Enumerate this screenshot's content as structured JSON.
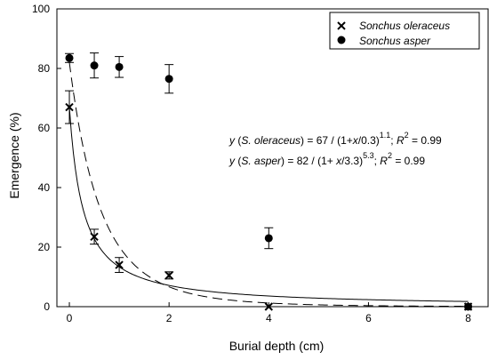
{
  "chart_data": {
    "type": "scatter",
    "xlabel": "Burial depth (cm)",
    "ylabel": "Emergence (%)",
    "xlim": [
      -0.25,
      8.4
    ],
    "ylim": [
      0,
      100
    ],
    "xticks": [
      0,
      2,
      4,
      6,
      8
    ],
    "yticks": [
      0,
      20,
      40,
      60,
      80,
      100
    ],
    "grid": false,
    "legend_position": "top-right",
    "series": [
      {
        "name": "Sonchus oleraceus",
        "marker": "x",
        "x": [
          0,
          0.5,
          1,
          2,
          4,
          8
        ],
        "y": [
          67,
          23.5,
          14,
          10.5,
          0,
          0
        ],
        "err": [
          5.5,
          2.5,
          2.5,
          1.2,
          0.3,
          0
        ],
        "fit": {
          "type": "reciprocal-power",
          "a": 67,
          "b": 0.3,
          "c": 1.1,
          "dash": "solid"
        }
      },
      {
        "name": "Sonchus asper",
        "marker": "circle",
        "x": [
          0,
          0.5,
          1,
          2,
          4,
          8
        ],
        "y": [
          83.5,
          81,
          80.5,
          76.5,
          23,
          0
        ],
        "err": [
          1.5,
          4.2,
          3.5,
          4.8,
          3.5,
          0
        ],
        "fit": {
          "type": "reciprocal-power",
          "a": 82,
          "b": 3.3,
          "c": 5.3,
          "dash": "dashed"
        }
      }
    ],
    "annotations": {
      "eq1": {
        "pre": "y",
        "mid": " (",
        "species": "S. oleraceus",
        "body": ") = 67 / (1+",
        "var": "x",
        "tail": "/0.3)",
        "exp": "1.1",
        "sep": "; ",
        "r": "R",
        "r_exp": "2",
        "r_val": " = 0.99"
      },
      "eq2": {
        "pre": "y",
        "mid": " (",
        "species": "S. asper",
        "body": ") = 82 / (1+ ",
        "var": "x",
        "tail": "/3.3)",
        "exp": "5.3",
        "sep": "; ",
        "r": "R",
        "r_exp": "2",
        "r_val": " = 0.99"
      }
    }
  }
}
